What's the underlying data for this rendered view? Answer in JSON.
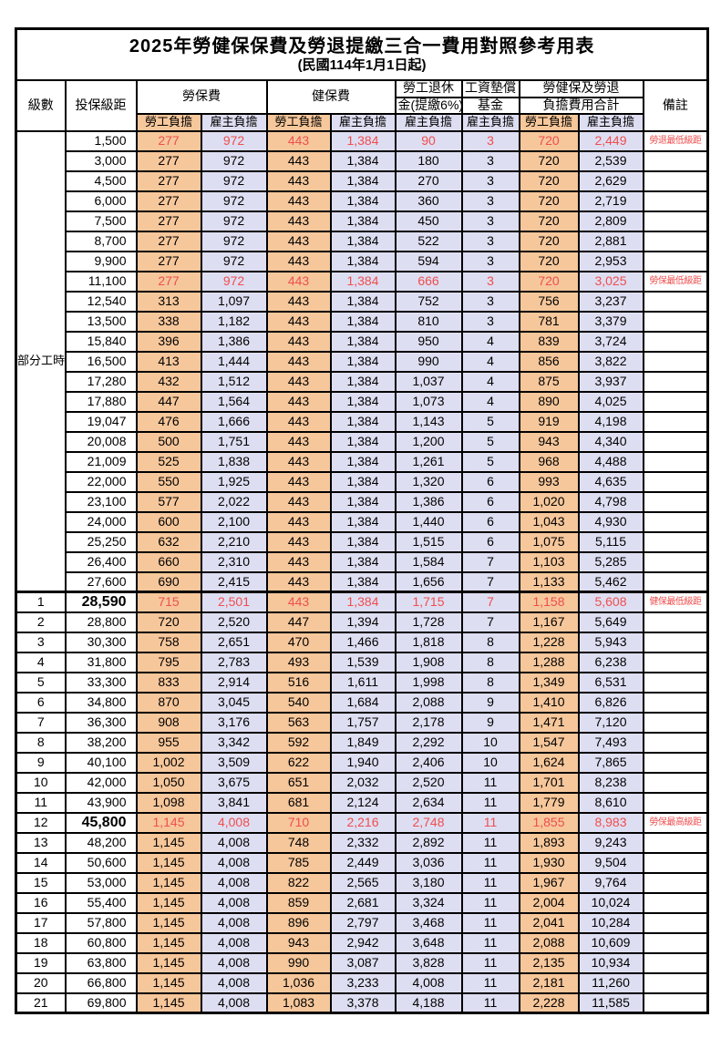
{
  "title": "2025年勞健保保費及勞退提繳三合一費用對照參考用表",
  "subtitle": "(民國114年1月1日起)",
  "colors": {
    "employee_column_bg": "#f6c79b",
    "employer_column_bg": "#dedef2",
    "highlight_text": "#ef4e4e",
    "border": "#000000"
  },
  "header": {
    "level": "級數",
    "bracket": "投保級距",
    "labor_fee": "勞保費",
    "health_fee": "健保費",
    "pension_line1": "勞工退休",
    "pension_line2": "金(提繳6%)",
    "wage_fund_line1": "工資墊償",
    "wage_fund_line2": "基金",
    "total_line1": "勞健保及勞退",
    "total_line2": "負擔費用合計",
    "remark": "備註",
    "sub": [
      "勞工負擔",
      "雇主負擔",
      "勞工負擔",
      "雇主負擔",
      "雇主負擔",
      "雇主負擔",
      "勞工負擔",
      "雇主負擔"
    ]
  },
  "part_time_label": "部分工時",
  "part_time_rowspan": 23,
  "rows": [
    {
      "level": "",
      "bracket": "1,500",
      "values": [
        "277",
        "972",
        "443",
        "1,384",
        "90",
        "3",
        "720",
        "2,449"
      ],
      "remark": "勞退最低級距",
      "highlight": true
    },
    {
      "level": "",
      "bracket": "3,000",
      "values": [
        "277",
        "972",
        "443",
        "1,384",
        "180",
        "3",
        "720",
        "2,539"
      ],
      "remark": ""
    },
    {
      "level": "",
      "bracket": "4,500",
      "values": [
        "277",
        "972",
        "443",
        "1,384",
        "270",
        "3",
        "720",
        "2,629"
      ],
      "remark": ""
    },
    {
      "level": "",
      "bracket": "6,000",
      "values": [
        "277",
        "972",
        "443",
        "1,384",
        "360",
        "3",
        "720",
        "2,719"
      ],
      "remark": ""
    },
    {
      "level": "",
      "bracket": "7,500",
      "values": [
        "277",
        "972",
        "443",
        "1,384",
        "450",
        "3",
        "720",
        "2,809"
      ],
      "remark": ""
    },
    {
      "level": "",
      "bracket": "8,700",
      "values": [
        "277",
        "972",
        "443",
        "1,384",
        "522",
        "3",
        "720",
        "2,881"
      ],
      "remark": ""
    },
    {
      "level": "",
      "bracket": "9,900",
      "values": [
        "277",
        "972",
        "443",
        "1,384",
        "594",
        "3",
        "720",
        "2,953"
      ],
      "remark": ""
    },
    {
      "level": "",
      "bracket": "11,100",
      "values": [
        "277",
        "972",
        "443",
        "1,384",
        "666",
        "3",
        "720",
        "3,025"
      ],
      "remark": "勞保最低級距",
      "highlight": true
    },
    {
      "level": "",
      "bracket": "12,540",
      "values": [
        "313",
        "1,097",
        "443",
        "1,384",
        "752",
        "3",
        "756",
        "3,237"
      ],
      "remark": ""
    },
    {
      "level": "",
      "bracket": "13,500",
      "values": [
        "338",
        "1,182",
        "443",
        "1,384",
        "810",
        "3",
        "781",
        "3,379"
      ],
      "remark": ""
    },
    {
      "level": "",
      "bracket": "15,840",
      "values": [
        "396",
        "1,386",
        "443",
        "1,384",
        "950",
        "4",
        "839",
        "3,724"
      ],
      "remark": ""
    },
    {
      "level": "",
      "bracket": "16,500",
      "values": [
        "413",
        "1,444",
        "443",
        "1,384",
        "990",
        "4",
        "856",
        "3,822"
      ],
      "remark": ""
    },
    {
      "level": "",
      "bracket": "17,280",
      "values": [
        "432",
        "1,512",
        "443",
        "1,384",
        "1,037",
        "4",
        "875",
        "3,937"
      ],
      "remark": ""
    },
    {
      "level": "",
      "bracket": "17,880",
      "values": [
        "447",
        "1,564",
        "443",
        "1,384",
        "1,073",
        "4",
        "890",
        "4,025"
      ],
      "remark": ""
    },
    {
      "level": "",
      "bracket": "19,047",
      "values": [
        "476",
        "1,666",
        "443",
        "1,384",
        "1,143",
        "5",
        "919",
        "4,198"
      ],
      "remark": ""
    },
    {
      "level": "",
      "bracket": "20,008",
      "values": [
        "500",
        "1,751",
        "443",
        "1,384",
        "1,200",
        "5",
        "943",
        "4,340"
      ],
      "remark": ""
    },
    {
      "level": "",
      "bracket": "21,009",
      "values": [
        "525",
        "1,838",
        "443",
        "1,384",
        "1,261",
        "5",
        "968",
        "4,488"
      ],
      "remark": ""
    },
    {
      "level": "",
      "bracket": "22,000",
      "values": [
        "550",
        "1,925",
        "443",
        "1,384",
        "1,320",
        "6",
        "993",
        "4,635"
      ],
      "remark": ""
    },
    {
      "level": "",
      "bracket": "23,100",
      "values": [
        "577",
        "2,022",
        "443",
        "1,384",
        "1,386",
        "6",
        "1,020",
        "4,798"
      ],
      "remark": ""
    },
    {
      "level": "",
      "bracket": "24,000",
      "values": [
        "600",
        "2,100",
        "443",
        "1,384",
        "1,440",
        "6",
        "1,043",
        "4,930"
      ],
      "remark": ""
    },
    {
      "level": "",
      "bracket": "25,250",
      "values": [
        "632",
        "2,210",
        "443",
        "1,384",
        "1,515",
        "6",
        "1,075",
        "5,115"
      ],
      "remark": ""
    },
    {
      "level": "",
      "bracket": "26,400",
      "values": [
        "660",
        "2,310",
        "443",
        "1,384",
        "1,584",
        "7",
        "1,103",
        "5,285"
      ],
      "remark": ""
    },
    {
      "level": "",
      "bracket": "27,600",
      "values": [
        "690",
        "2,415",
        "443",
        "1,384",
        "1,656",
        "7",
        "1,133",
        "5,462"
      ],
      "remark": ""
    },
    {
      "level": "1",
      "bracket": "28,590",
      "values": [
        "715",
        "2,501",
        "443",
        "1,384",
        "1,715",
        "7",
        "1,158",
        "5,608"
      ],
      "remark": "健保最低級距",
      "highlight": true,
      "sep": true,
      "big": true
    },
    {
      "level": "2",
      "bracket": "28,800",
      "values": [
        "720",
        "2,520",
        "447",
        "1,394",
        "1,728",
        "7",
        "1,167",
        "5,649"
      ],
      "remark": ""
    },
    {
      "level": "3",
      "bracket": "30,300",
      "values": [
        "758",
        "2,651",
        "470",
        "1,466",
        "1,818",
        "8",
        "1,228",
        "5,943"
      ],
      "remark": ""
    },
    {
      "level": "4",
      "bracket": "31,800",
      "values": [
        "795",
        "2,783",
        "493",
        "1,539",
        "1,908",
        "8",
        "1,288",
        "6,238"
      ],
      "remark": ""
    },
    {
      "level": "5",
      "bracket": "33,300",
      "values": [
        "833",
        "2,914",
        "516",
        "1,611",
        "1,998",
        "8",
        "1,349",
        "6,531"
      ],
      "remark": ""
    },
    {
      "level": "6",
      "bracket": "34,800",
      "values": [
        "870",
        "3,045",
        "540",
        "1,684",
        "2,088",
        "9",
        "1,410",
        "6,826"
      ],
      "remark": ""
    },
    {
      "level": "7",
      "bracket": "36,300",
      "values": [
        "908",
        "3,176",
        "563",
        "1,757",
        "2,178",
        "9",
        "1,471",
        "7,120"
      ],
      "remark": ""
    },
    {
      "level": "8",
      "bracket": "38,200",
      "values": [
        "955",
        "3,342",
        "592",
        "1,849",
        "2,292",
        "10",
        "1,547",
        "7,493"
      ],
      "remark": ""
    },
    {
      "level": "9",
      "bracket": "40,100",
      "values": [
        "1,002",
        "3,509",
        "622",
        "1,940",
        "2,406",
        "10",
        "1,624",
        "7,865"
      ],
      "remark": ""
    },
    {
      "level": "10",
      "bracket": "42,000",
      "values": [
        "1,050",
        "3,675",
        "651",
        "2,032",
        "2,520",
        "11",
        "1,701",
        "8,238"
      ],
      "remark": ""
    },
    {
      "level": "11",
      "bracket": "43,900",
      "values": [
        "1,098",
        "3,841",
        "681",
        "2,124",
        "2,634",
        "11",
        "1,779",
        "8,610"
      ],
      "remark": ""
    },
    {
      "level": "12",
      "bracket": "45,800",
      "values": [
        "1,145",
        "4,008",
        "710",
        "2,216",
        "2,748",
        "11",
        "1,855",
        "8,983"
      ],
      "remark": "勞保最高級距",
      "highlight": true,
      "big": true
    },
    {
      "level": "13",
      "bracket": "48,200",
      "values": [
        "1,145",
        "4,008",
        "748",
        "2,332",
        "2,892",
        "11",
        "1,893",
        "9,243"
      ],
      "remark": ""
    },
    {
      "level": "14",
      "bracket": "50,600",
      "values": [
        "1,145",
        "4,008",
        "785",
        "2,449",
        "3,036",
        "11",
        "1,930",
        "9,504"
      ],
      "remark": ""
    },
    {
      "level": "15",
      "bracket": "53,000",
      "values": [
        "1,145",
        "4,008",
        "822",
        "2,565",
        "3,180",
        "11",
        "1,967",
        "9,764"
      ],
      "remark": ""
    },
    {
      "level": "16",
      "bracket": "55,400",
      "values": [
        "1,145",
        "4,008",
        "859",
        "2,681",
        "3,324",
        "11",
        "2,004",
        "10,024"
      ],
      "remark": ""
    },
    {
      "level": "17",
      "bracket": "57,800",
      "values": [
        "1,145",
        "4,008",
        "896",
        "2,797",
        "3,468",
        "11",
        "2,041",
        "10,284"
      ],
      "remark": ""
    },
    {
      "level": "18",
      "bracket": "60,800",
      "values": [
        "1,145",
        "4,008",
        "943",
        "2,942",
        "3,648",
        "11",
        "2,088",
        "10,609"
      ],
      "remark": ""
    },
    {
      "level": "19",
      "bracket": "63,800",
      "values": [
        "1,145",
        "4,008",
        "990",
        "3,087",
        "3,828",
        "11",
        "2,135",
        "10,934"
      ],
      "remark": ""
    },
    {
      "level": "20",
      "bracket": "66,800",
      "values": [
        "1,145",
        "4,008",
        "1,036",
        "3,233",
        "4,008",
        "11",
        "2,181",
        "11,260"
      ],
      "remark": ""
    },
    {
      "level": "21",
      "bracket": "69,800",
      "values": [
        "1,145",
        "4,008",
        "1,083",
        "3,378",
        "4,188",
        "11",
        "2,228",
        "11,585"
      ],
      "remark": ""
    }
  ]
}
